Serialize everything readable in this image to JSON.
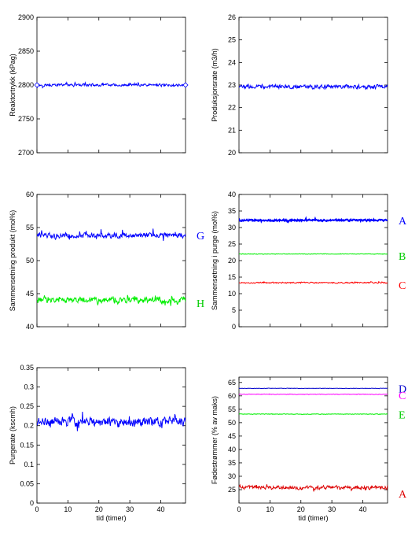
{
  "chart_data": [
    {
      "id": "p1",
      "type": "line",
      "ylabel": "Reaktortrykk (kPag)",
      "xlabel": "",
      "xlim": [
        0,
        48
      ],
      "ylim": [
        2700,
        2900
      ],
      "xticks": [
        0,
        10,
        20,
        30,
        40
      ],
      "yticks": [
        2700,
        2750,
        2800,
        2850,
        2900
      ],
      "show_xtick_labels": false,
      "series": [
        {
          "color": "#0000ff",
          "base": 2800,
          "noise": 2.5,
          "spike": 4,
          "lw": 1,
          "marker": "diamond"
        }
      ],
      "tags": []
    },
    {
      "id": "p2",
      "type": "line",
      "ylabel": "Produksjonsrate (m3/h)",
      "xlabel": "",
      "xlim": [
        0,
        48
      ],
      "ylim": [
        20,
        26
      ],
      "xticks": [
        0,
        10,
        20,
        30,
        40
      ],
      "yticks": [
        20,
        21,
        22,
        23,
        24,
        25,
        26
      ],
      "show_xtick_labels": false,
      "series": [
        {
          "color": "#0000ff",
          "base": 22.93,
          "noise": 0.12,
          "spike": 0.15,
          "lw": 1,
          "marker": ""
        }
      ],
      "tags": []
    },
    {
      "id": "p3",
      "type": "line",
      "ylabel": "Sammensetning produkt (mol%)",
      "xlabel": "",
      "xlim": [
        0,
        48
      ],
      "ylim": [
        40,
        60
      ],
      "xticks": [
        0,
        10,
        20,
        30,
        40
      ],
      "yticks": [
        40,
        45,
        50,
        55,
        60
      ],
      "ytick_labels": [
        "40",
        "45",
        "50",
        "55",
        "60"
      ],
      "show_xtick_labels": false,
      "series": [
        {
          "color": "#0000ff",
          "base": 53.8,
          "noise": 0.5,
          "spike": 1.3,
          "lw": 1,
          "marker": ""
        },
        {
          "color": "#00ee00",
          "base": 44.0,
          "noise": 0.6,
          "spike": 1.3,
          "lw": 1,
          "marker": ""
        }
      ],
      "tags": [
        {
          "text": "G",
          "color": "#0000ff",
          "value": 53.8
        },
        {
          "text": "H",
          "color": "#00cc00",
          "value": 43.6
        }
      ]
    },
    {
      "id": "p4",
      "type": "line",
      "ylabel": "Sammensetning i purge (mol%)",
      "xlabel": "",
      "xlim": [
        0,
        48
      ],
      "ylim": [
        0,
        40
      ],
      "xticks": [
        0,
        10,
        20,
        30,
        40
      ],
      "yticks": [
        0,
        5,
        10,
        15,
        20,
        25,
        30,
        35,
        40
      ],
      "show_xtick_labels": false,
      "series": [
        {
          "color": "#0000ff",
          "base": 32.2,
          "noise": 0.35,
          "spike": 0.5,
          "lw": 2,
          "marker": ""
        },
        {
          "color": "#00ee00",
          "base": 22.0,
          "noise": 0.12,
          "spike": 0.1,
          "lw": 1,
          "marker": ""
        },
        {
          "color": "#ff0000",
          "base": 13.3,
          "noise": 0.25,
          "spike": 0.35,
          "lw": 1,
          "marker": ""
        }
      ],
      "tags": [
        {
          "text": "A",
          "color": "#0000ff",
          "value": 32.2
        },
        {
          "text": "B",
          "color": "#00cc00",
          "value": 21.4
        },
        {
          "text": "C",
          "color": "#ff0000",
          "value": 12.6
        }
      ]
    },
    {
      "id": "p5",
      "type": "line",
      "ylabel": "Purgerate (kscmh)",
      "xlabel": "tid (timer)",
      "xlim": [
        0,
        48
      ],
      "ylim": [
        0,
        0.35
      ],
      "xticks": [
        0,
        10,
        20,
        30,
        40
      ],
      "yticks": [
        0,
        0.05,
        0.1,
        0.15,
        0.2,
        0.25,
        0.3,
        0.35
      ],
      "show_xtick_labels": true,
      "series": [
        {
          "color": "#0000ff",
          "base": 0.21,
          "noise": 0.016,
          "spike": 0.035,
          "lw": 1,
          "marker": ""
        }
      ],
      "tags": []
    },
    {
      "id": "p6",
      "type": "line",
      "ylabel": "Fødestrømmer (% av maks)",
      "xlabel": "tid (timer)",
      "xlim": [
        0,
        48
      ],
      "ylim": [
        20,
        67
      ],
      "xticks": [
        0,
        10,
        20,
        30,
        40
      ],
      "yticks": [
        25,
        30,
        35,
        40,
        45,
        50,
        55,
        60,
        65
      ],
      "show_xtick_labels": true,
      "series": [
        {
          "color": "#0000cc",
          "base": 62.8,
          "noise": 0.1,
          "spike": 0.1,
          "lw": 1,
          "marker": ""
        },
        {
          "color": "#ff00ff",
          "base": 60.6,
          "noise": 0.15,
          "spike": 0.15,
          "lw": 1,
          "marker": ""
        },
        {
          "color": "#00ee00",
          "base": 53.2,
          "noise": 0.15,
          "spike": 0.15,
          "lw": 1,
          "marker": ""
        },
        {
          "color": "#dd0000",
          "base": 25.8,
          "noise": 0.9,
          "spike": 1.5,
          "lw": 1,
          "marker": ""
        }
      ],
      "tags": [
        {
          "text": "D",
          "color": "#0000cc",
          "value": 62.8
        },
        {
          "text": "C",
          "color": "#ff00ff",
          "value": 60.2
        },
        {
          "text": "E",
          "color": "#00cc00",
          "value": 53.0
        },
        {
          "text": "A",
          "color": "#dd0000",
          "value": 23.5
        }
      ]
    }
  ]
}
